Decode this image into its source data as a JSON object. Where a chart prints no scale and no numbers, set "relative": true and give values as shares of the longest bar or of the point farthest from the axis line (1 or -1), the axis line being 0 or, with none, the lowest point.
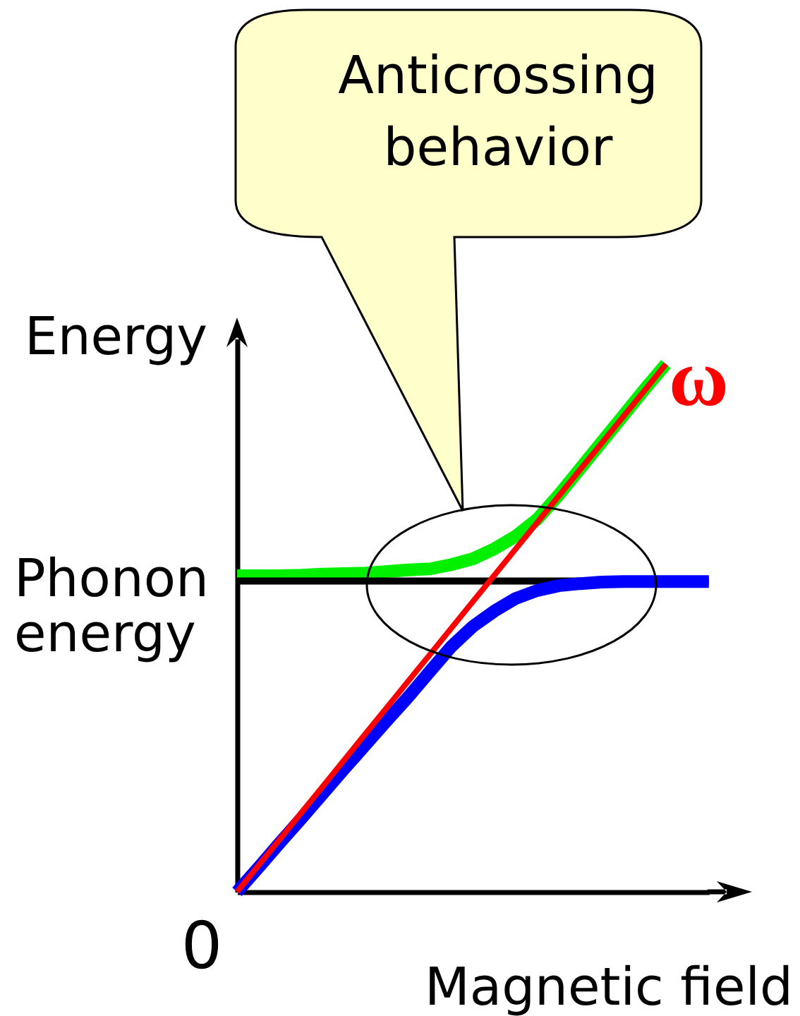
{
  "chart_data": {
    "type": "line",
    "relative": true,
    "categories": [
      null,
      null,
      null,
      null,
      null,
      null,
      null,
      null,
      null,
      null,
      null,
      null,
      null,
      null,
      null,
      null,
      null,
      null,
      null,
      null,
      null,
      null,
      null
    ],
    "xlabel": "Magnetic field",
    "ylabel": "Energy",
    "series": [
      {
        "color": "#00f000",
        "values": [
          0.599,
          0.599,
          0.599,
          0.6,
          0.602,
          0.603,
          0.604,
          0.607,
          0.61,
          0.612,
          0.62,
          0.631,
          0.65,
          0.674,
          0.706,
          0.752,
          0.802,
          0.852,
          0.902,
          0.952,
          1,
          null,
          null
        ]
      },
      {
        "color": "#0000ff",
        "values": [
          0,
          0.046,
          0.093,
          0.139,
          0.186,
          0.233,
          0.279,
          0.325,
          0.37,
          0.418,
          0.465,
          0.503,
          0.532,
          0.556,
          0.571,
          0.58,
          0.584,
          0.587,
          0.588,
          0.588,
          0.588,
          0.588,
          0.588
        ]
      },
      {
        "name": "ω",
        "color": "#ff0000",
        "values": [
          0,
          0.05,
          0.1,
          0.15,
          0.2,
          0.25,
          0.3,
          0.35,
          0.4,
          0.45,
          0.5,
          0.55,
          0.6,
          0.65,
          0.7,
          0.75,
          0.8,
          0.85,
          0.9,
          0.95,
          1,
          null,
          null
        ]
      }
    ],
    "ref_lines": [
      {
        "axis": "y",
        "value": 0.589,
        "label": "Phonon energy",
        "color": "#000000"
      }
    ],
    "annotations": [
      "Anticrossing behavior",
      "0"
    ]
  }
}
